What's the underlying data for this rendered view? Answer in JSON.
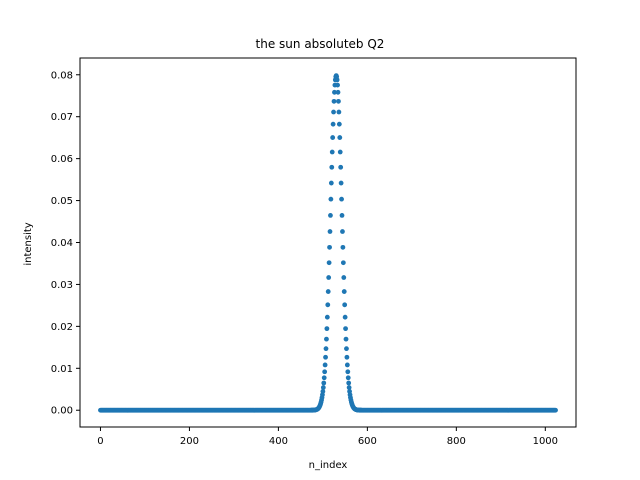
{
  "chart_data": {
    "type": "scatter",
    "title": "the sun absoluteb Q2",
    "xlabel": "n_index",
    "ylabel": "intensity",
    "xlim": [
      -46,
      1069
    ],
    "ylim": [
      -0.004,
      0.084
    ],
    "xticks": [
      0,
      200,
      400,
      600,
      800,
      1000
    ],
    "yticks": [
      0.0,
      0.01,
      0.02,
      0.03,
      0.04,
      0.05,
      0.06,
      0.07,
      0.08
    ],
    "xtick_labels": [
      "0",
      "200",
      "400",
      "600",
      "800",
      "1000"
    ],
    "ytick_labels": [
      "0.00",
      "0.01",
      "0.02",
      "0.03",
      "0.04",
      "0.05",
      "0.06",
      "0.07",
      "0.08"
    ],
    "grid": false,
    "marker_color": "#1f77b4",
    "series": [
      {
        "distribution": "gaussian",
        "x_start": 0,
        "x_end": 1023,
        "peak_x": 530,
        "peak_y": 0.0798,
        "sigma": 12.5
      }
    ]
  }
}
